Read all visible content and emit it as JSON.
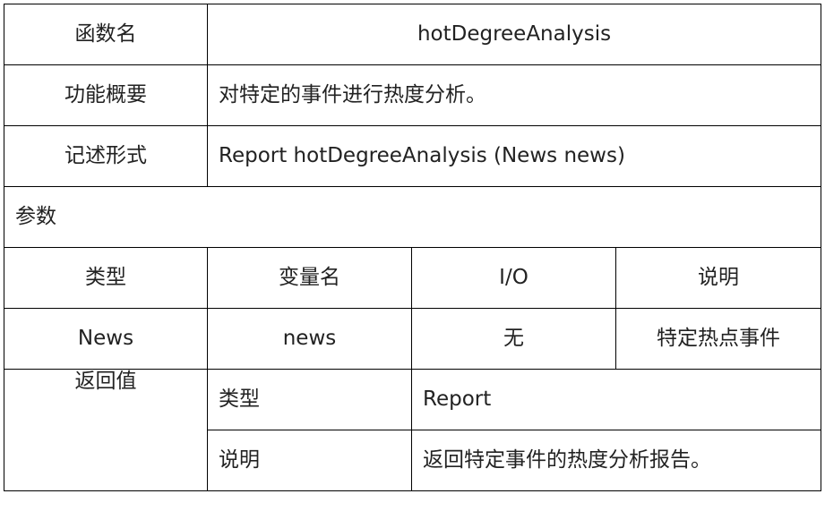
{
  "function_name": {
    "label": "函数名",
    "value": "hotDegreeAnalysis"
  },
  "summary": {
    "label": "功能概要",
    "value": "对特定的事件进行热度分析。"
  },
  "signature": {
    "label": "记述形式",
    "value": "Report hotDegreeAnalysis (News news)"
  },
  "params": {
    "label": "参数",
    "headers": [
      "类型",
      "变量名",
      "I/O",
      "说明"
    ],
    "rows": [
      [
        "News",
        "news",
        "无",
        "特定热点事件"
      ]
    ]
  },
  "return_value": {
    "label": "返回值",
    "type_label": "类型",
    "type_value": "Report",
    "desc_label": "说明",
    "desc_value": "返回特定事件的热度分析报告。"
  }
}
